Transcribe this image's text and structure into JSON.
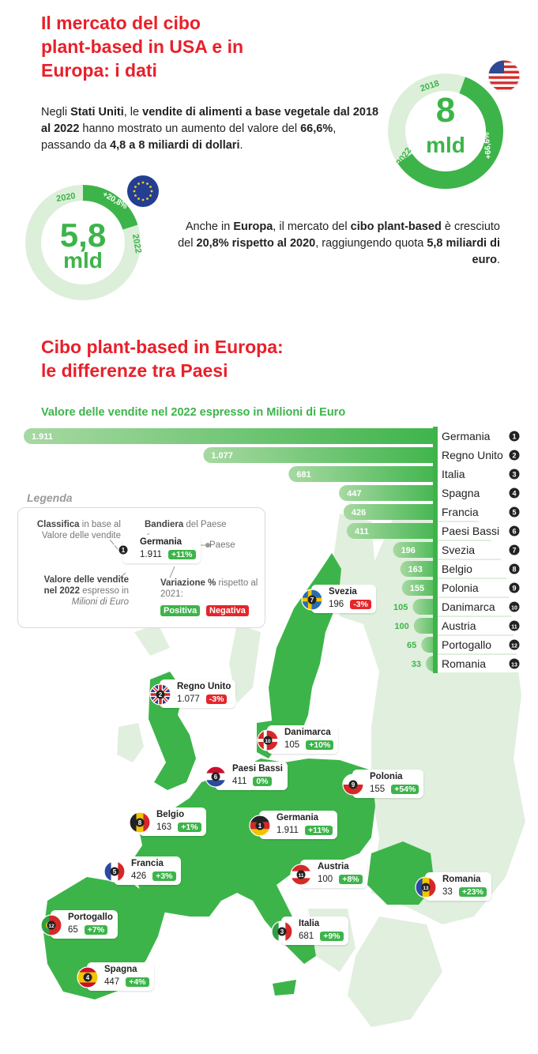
{
  "header": {
    "title_lines": [
      "Il mercato del cibo",
      "plant-based in USA e in",
      "Europa: i dati"
    ],
    "section_title_lines": [
      "Cibo plant-based in Europa:",
      "le differenze tra Paesi"
    ]
  },
  "usa": {
    "paragraph": [
      {
        "t": "Negli ",
        "b": false
      },
      {
        "t": "Stati Uniti",
        "b": true
      },
      {
        "t": ", le ",
        "b": false
      },
      {
        "t": "vendite di alimenti a base vegetale dal 2018 al 2022",
        "b": true
      },
      {
        "t": " hanno mostrato un aumento del valore del ",
        "b": false
      },
      {
        "t": "66,6%",
        "b": true
      },
      {
        "t": ", passando da ",
        "b": false
      },
      {
        "t": "4,8 a 8 miliardi di dollari",
        "b": true
      },
      {
        "t": ".",
        "b": false
      }
    ],
    "donut": {
      "value": "8",
      "unit": "mld",
      "start_label": "2018",
      "end_label": "2022",
      "change": "+66,6%",
      "fill_fraction": 0.6
    }
  },
  "europe": {
    "paragraph": [
      {
        "t": "Anche in ",
        "b": false
      },
      {
        "t": "Europa",
        "b": true
      },
      {
        "t": ", il mercato del ",
        "b": false
      },
      {
        "t": "cibo plant-based",
        "b": true
      },
      {
        "t": " è cresciuto del ",
        "b": false
      },
      {
        "t": "20,8% rispetto al 2020",
        "b": true
      },
      {
        "t": ", raggiungendo quota ",
        "b": false
      },
      {
        "t": "5,8 miliardi di euro",
        "b": true
      },
      {
        "t": ".",
        "b": false
      }
    ],
    "donut": {
      "value": "5,8",
      "unit": "mld",
      "start_label": "2020",
      "end_label": "2022",
      "change": "+20,8%",
      "fill_fraction": 0.2
    }
  },
  "legend": {
    "heading": "Legenda",
    "rank_label": [
      {
        "t": "Classifica",
        "b": true
      },
      {
        "t": " in base al Valore delle vendite",
        "b": false
      }
    ],
    "flag_label": [
      {
        "t": "Bandiera",
        "b": true
      },
      {
        "t": " del Paese",
        "b": false
      }
    ],
    "country_label": "Paese",
    "value_label": [
      {
        "t": "Valore delle vendite nel 2022",
        "b": true
      },
      {
        "t": " espresso in ",
        "b": false
      },
      {
        "t": "Milioni di Euro",
        "b": false,
        "i": true
      }
    ],
    "variation_label": [
      {
        "t": "Variazione %",
        "b": true
      },
      {
        "t": " rispetto al 2021:",
        "b": false
      }
    ],
    "positive": "Positiva",
    "negative": "Negativa",
    "example": {
      "name": "Germania",
      "value": "1.911",
      "change": "+11%",
      "rank": "1"
    }
  },
  "colors": {
    "accent_red": "#e8202a",
    "green": "#3db44a",
    "light_green": "#cfe8cc",
    "map_light": "#e1efde",
    "negative": "#e3262c"
  },
  "chart_data": {
    "type": "bar",
    "orientation": "horizontal",
    "title": "Valore delle vendite nel 2022 espresso in Milioni di Euro",
    "categories": [
      "Germania",
      "Regno Unito",
      "Italia",
      "Spagna",
      "Francia",
      "Paesi Bassi",
      "Svezia",
      "Belgio",
      "Polonia",
      "Danimarca",
      "Austria",
      "Portogallo",
      "Romania"
    ],
    "values": [
      1911,
      1077,
      681,
      447,
      426,
      411,
      196,
      163,
      155,
      105,
      100,
      65,
      33
    ],
    "value_labels": [
      "1.911",
      "1.077",
      "681",
      "447",
      "426",
      "411",
      "196",
      "163",
      "155",
      "105",
      "100",
      "65",
      "33"
    ],
    "ranks": [
      "1",
      "2",
      "3",
      "4",
      "5",
      "6",
      "7",
      "8",
      "9",
      "10",
      "11",
      "12",
      "13"
    ],
    "changes": [
      "+11%",
      "-3%",
      "+9%",
      "+4%",
      "+3%",
      "0%",
      "-3%",
      "+1%",
      "+54%",
      "+10%",
      "+8%",
      "+7%",
      "+23%"
    ]
  },
  "map_markers": [
    {
      "name": "Svezia",
      "value": "196",
      "change": "-3%",
      "rank": "7",
      "flag": "sweden"
    },
    {
      "name": "Regno Unito",
      "value": "1.077",
      "change": "-3%",
      "rank": "2",
      "flag": "uk"
    },
    {
      "name": "Danimarca",
      "value": "105",
      "change": "+10%",
      "rank": "10",
      "flag": "denmark"
    },
    {
      "name": "Paesi Bassi",
      "value": "411",
      "change": "0%",
      "rank": "6",
      "flag": "netherlands"
    },
    {
      "name": "Polonia",
      "value": "155",
      "change": "+54%",
      "rank": "9",
      "flag": "poland"
    },
    {
      "name": "Belgio",
      "value": "163",
      "change": "+1%",
      "rank": "8",
      "flag": "belgium"
    },
    {
      "name": "Germania",
      "value": "1.911",
      "change": "+11%",
      "rank": "1",
      "flag": "germany"
    },
    {
      "name": "Francia",
      "value": "426",
      "change": "+3%",
      "rank": "5",
      "flag": "france"
    },
    {
      "name": "Austria",
      "value": "100",
      "change": "+8%",
      "rank": "11",
      "flag": "austria"
    },
    {
      "name": "Romania",
      "value": "33",
      "change": "+23%",
      "rank": "13",
      "flag": "romania"
    },
    {
      "name": "Portogallo",
      "value": "65",
      "change": "+7%",
      "rank": "12",
      "flag": "portugal"
    },
    {
      "name": "Italia",
      "value": "681",
      "change": "+9%",
      "rank": "3",
      "flag": "italy"
    },
    {
      "name": "Spagna",
      "value": "447",
      "change": "+4%",
      "rank": "4",
      "flag": "spain"
    }
  ]
}
